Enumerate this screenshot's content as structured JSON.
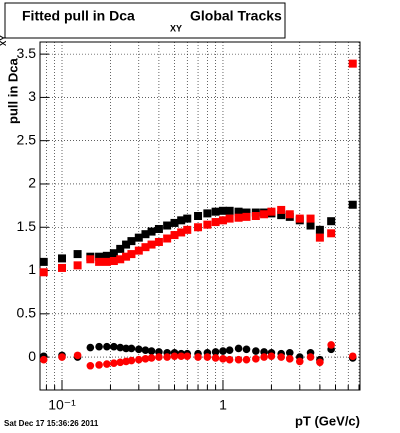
{
  "chart_data": {
    "type": "scatter",
    "title": "Fitted pull in Dca",
    "title_subscript": "XY",
    "title_suffix": "Global Tracks",
    "y_label": "pull in Dca",
    "y_label_subscript": "XY",
    "x_label": "pT (GeV/c)",
    "timestamp": "Sat Dec 17 15:36:26 2011",
    "x": [
      0.077,
      0.1,
      0.125,
      0.15,
      0.17,
      0.19,
      0.21,
      0.23,
      0.25,
      0.27,
      0.3,
      0.33,
      0.36,
      0.4,
      0.45,
      0.5,
      0.55,
      0.6,
      0.7,
      0.8,
      0.9,
      1.0,
      1.1,
      1.25,
      1.4,
      1.6,
      1.8,
      2.0,
      2.3,
      2.6,
      3.0,
      3.5,
      4.0,
      4.7,
      6.4
    ],
    "series": [
      {
        "color": "#000000",
        "marker": "square",
        "values": [
          1.1,
          1.14,
          1.19,
          1.16,
          1.16,
          1.17,
          1.2,
          1.25,
          1.3,
          1.34,
          1.38,
          1.42,
          1.45,
          1.48,
          1.52,
          1.55,
          1.58,
          1.6,
          1.63,
          1.66,
          1.68,
          1.69,
          1.69,
          1.68,
          1.67,
          1.67,
          1.67,
          1.66,
          1.64,
          1.62,
          1.58,
          1.52,
          1.47,
          1.57,
          1.76
        ]
      },
      {
        "color": "#ff0000",
        "marker": "square",
        "values": [
          0.98,
          1.03,
          1.06,
          1.13,
          1.1,
          1.1,
          1.11,
          1.13,
          1.16,
          1.19,
          1.23,
          1.27,
          1.3,
          1.33,
          1.37,
          1.41,
          1.44,
          1.47,
          1.5,
          1.53,
          1.56,
          1.58,
          1.6,
          1.61,
          1.62,
          1.63,
          1.65,
          1.68,
          1.7,
          1.65,
          1.6,
          1.6,
          1.38,
          1.43,
          3.39
        ]
      },
      {
        "color": "#000000",
        "marker": "circle",
        "values": [
          0.01,
          0.02,
          0.0,
          0.11,
          0.12,
          0.12,
          0.12,
          0.11,
          0.1,
          0.1,
          0.09,
          0.08,
          0.07,
          0.06,
          0.05,
          0.05,
          0.04,
          0.04,
          0.04,
          0.05,
          0.06,
          0.07,
          0.08,
          0.1,
          0.09,
          0.07,
          0.06,
          0.05,
          0.04,
          0.05,
          0.0,
          0.05,
          -0.03,
          0.09,
          -0.01
        ]
      },
      {
        "color": "#ff0000",
        "marker": "circle",
        "values": [
          -0.03,
          0.0,
          0.02,
          -0.1,
          -0.09,
          -0.08,
          -0.07,
          -0.06,
          -0.05,
          -0.04,
          -0.03,
          -0.02,
          -0.01,
          0.0,
          0.0,
          0.01,
          0.01,
          0.01,
          0.0,
          0.0,
          -0.01,
          -0.02,
          -0.03,
          -0.03,
          -0.03,
          -0.02,
          0.0,
          0.01,
          0.0,
          -0.02,
          -0.05,
          0.0,
          -0.06,
          0.14,
          0.01
        ]
      }
    ],
    "xlog": true,
    "xlim": [
      0.073,
      7.1
    ],
    "xticks": [
      {
        "value": 0.1,
        "label": "10⁻¹"
      },
      1
    ],
    "xminorticks": [
      0.08,
      0.09,
      0.2,
      0.3,
      0.4,
      0.5,
      0.6,
      0.7,
      0.8,
      0.9,
      2,
      3,
      4,
      5,
      6,
      7
    ],
    "ylim": [
      -0.38,
      3.64
    ],
    "yticks": [
      0,
      0.5,
      1,
      1.5,
      2,
      2.5,
      3,
      3.5
    ],
    "grid": true
  }
}
